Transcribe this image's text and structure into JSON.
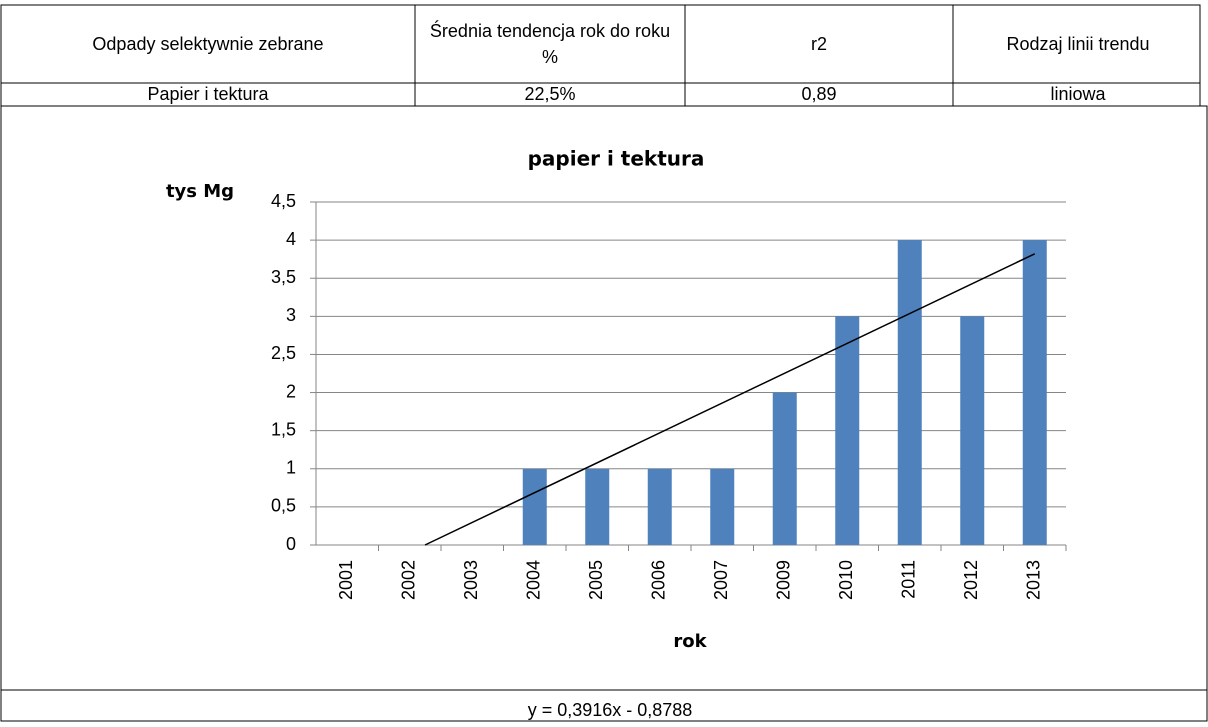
{
  "table": {
    "header": [
      "Odpady selektywnie zebrane",
      "Średnia tendencja rok do roku %",
      "r2",
      "Rodzaj linii trendu"
    ],
    "rows": [
      [
        "Papier i tektura",
        "22,5%",
        "0,89",
        "liniowa"
      ]
    ]
  },
  "chart_data": {
    "type": "bar",
    "title": "papier i tektura",
    "y_label": "tys Mg",
    "x_label": "rok",
    "categories": [
      "2001",
      "2002",
      "2003",
      "2004",
      "2005",
      "2006",
      "2007",
      "2009",
      "2010",
      "2011",
      "2012",
      "2013"
    ],
    "values": [
      0,
      0,
      0,
      1,
      1,
      1,
      1,
      2,
      3,
      4,
      3,
      4
    ],
    "color": "#4f81bd",
    "ylim": [
      0,
      4.5
    ],
    "yticks": [
      0,
      {
        "value": 0.5,
        "label": "0,5"
      },
      1,
      {
        "value": 1.5,
        "label": "1,5"
      },
      2,
      {
        "value": 2.5,
        "label": "2,5"
      },
      3,
      {
        "value": 3.5,
        "label": "3,5"
      },
      4,
      {
        "value": 4.5,
        "label": "4,5"
      }
    ],
    "grid": true,
    "trendline": {
      "slope": 0.3916,
      "intercept": -0.8788
    }
  },
  "footer": "y = 0,3916x - 0,8788"
}
